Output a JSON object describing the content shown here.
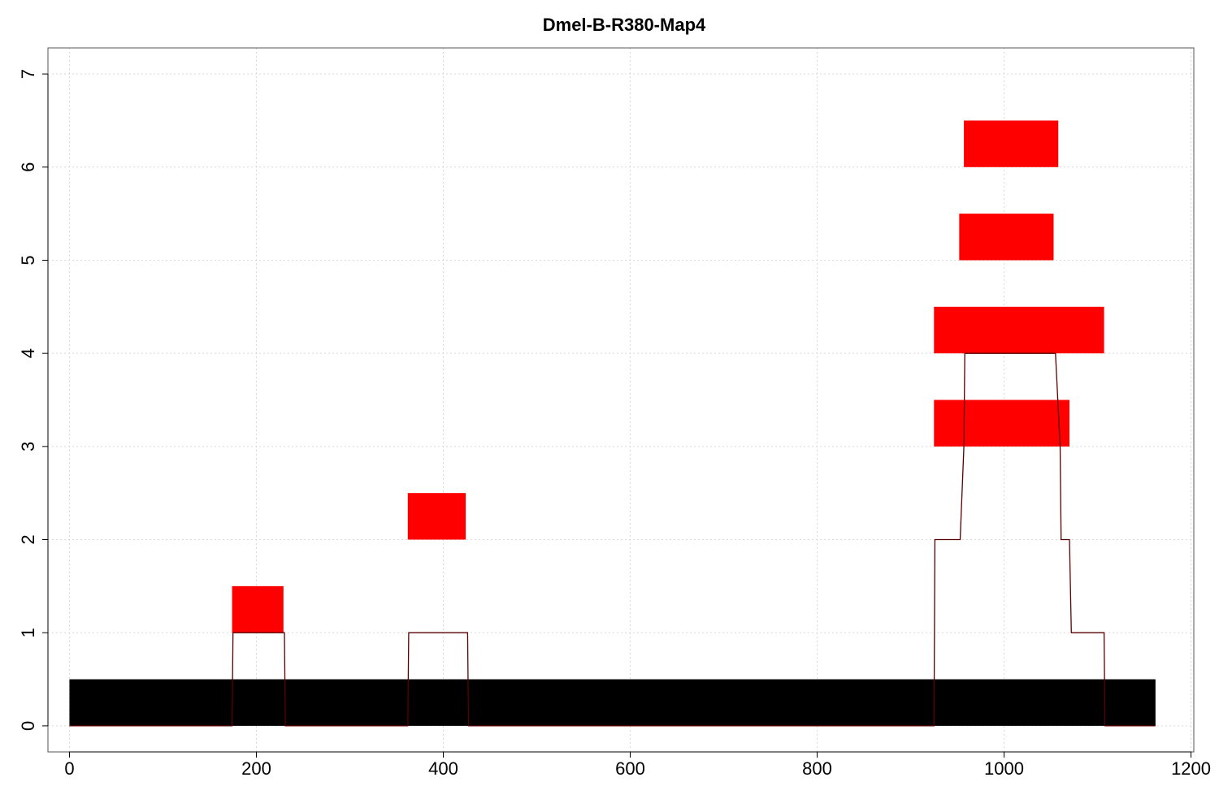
{
  "chart_data": {
    "type": "bar",
    "title": "Dmel-B-R380-Map4",
    "xlabel": "",
    "ylabel": "",
    "xlim": [
      -23,
      1203
    ],
    "ylim": [
      -0.28,
      7.28
    ],
    "x_ticks": [
      0,
      200,
      400,
      600,
      800,
      1000,
      1200
    ],
    "y_ticks": [
      0,
      1,
      2,
      3,
      4,
      5,
      6,
      7
    ],
    "grid": true,
    "reference_bar": {
      "x_start": 0,
      "x_end": 1162,
      "y_bottom": 0,
      "y_top": 0.5,
      "color": "#000000"
    },
    "segments": [
      {
        "x_start": 174,
        "x_end": 229,
        "y_bottom": 1,
        "y_top": 1.5
      },
      {
        "x_start": 362,
        "x_end": 424,
        "y_bottom": 2,
        "y_top": 2.5
      },
      {
        "x_start": 925,
        "x_end": 1070,
        "y_bottom": 3,
        "y_top": 3.5
      },
      {
        "x_start": 925,
        "x_end": 1107,
        "y_bottom": 4,
        "y_top": 4.5
      },
      {
        "x_start": 952,
        "x_end": 1053,
        "y_bottom": 5,
        "y_top": 5.5
      },
      {
        "x_start": 957,
        "x_end": 1058,
        "y_bottom": 6,
        "y_top": 6.5
      }
    ],
    "segment_color": "#ff0000",
    "coverage_line": {
      "color": "#5a0000",
      "x": [
        0,
        174,
        175,
        230,
        231,
        362,
        363,
        426,
        427,
        925,
        926,
        953,
        957,
        958,
        1055,
        1060,
        1061,
        1070,
        1072,
        1107,
        1108,
        1162
      ],
      "y": [
        0,
        0,
        1,
        1,
        0,
        0,
        1,
        1,
        0,
        0,
        2,
        2,
        3,
        4,
        4,
        3,
        2,
        2,
        1,
        1,
        0,
        0
      ]
    }
  }
}
